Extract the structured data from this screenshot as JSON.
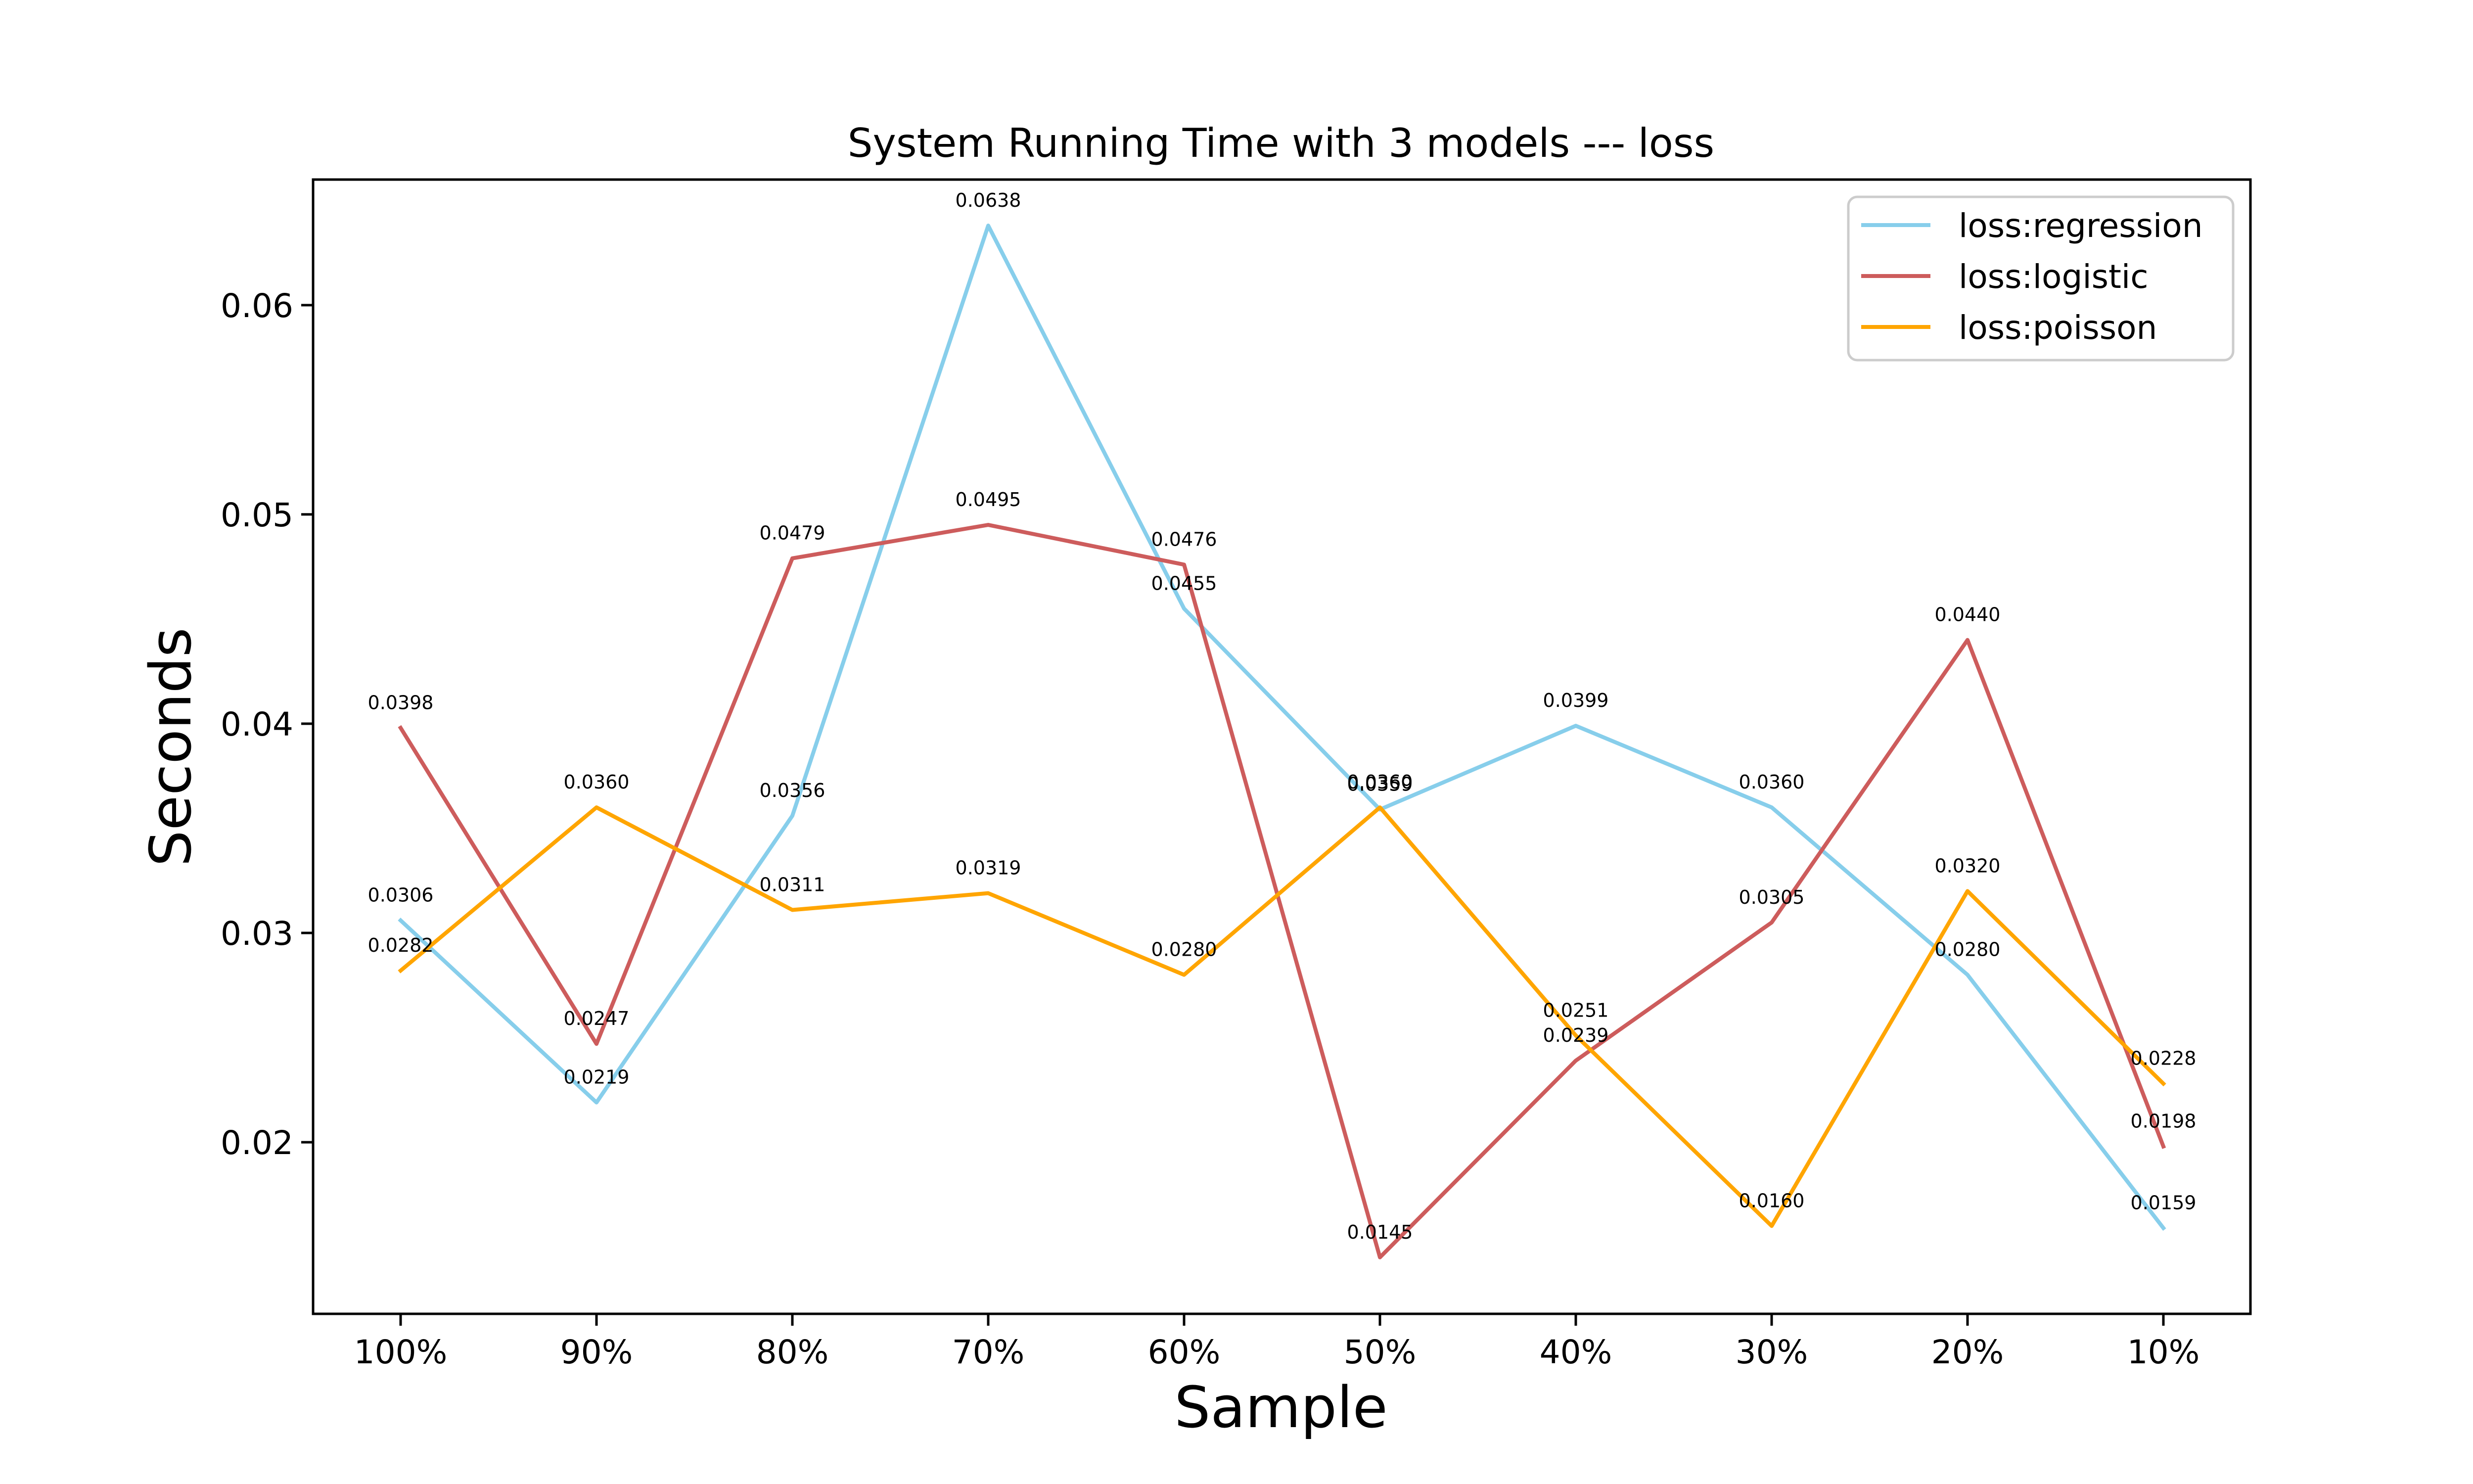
{
  "chart_data": {
    "type": "line",
    "title": "System Running Time with 3 models --- loss",
    "xlabel": "Sample",
    "ylabel": "Seconds",
    "categories": [
      "100%",
      "90%",
      "80%",
      "70%",
      "60%",
      "50%",
      "40%",
      "30%",
      "20%",
      "10%"
    ],
    "ylim": [
      0.0118,
      0.066
    ],
    "yticks": [
      0.02,
      0.03,
      0.04,
      0.05,
      0.06
    ],
    "ytick_labels": [
      "0.02",
      "0.03",
      "0.04",
      "0.05",
      "0.06"
    ],
    "grid": false,
    "legend_position": "top-right",
    "series": [
      {
        "name": "loss:regression",
        "color": "#87ceeb",
        "values": [
          0.0306,
          0.0219,
          0.0356,
          0.0638,
          0.0455,
          0.0359,
          0.0399,
          0.036,
          0.028,
          0.0159
        ],
        "labels": [
          "0.0306",
          "0.0219",
          "0.0356",
          "0.0638",
          "0.0455",
          "0.0359",
          "0.0399",
          "0.0360",
          "0.0280",
          "0.0159"
        ]
      },
      {
        "name": "loss:logistic",
        "color": "#cd5c5c",
        "values": [
          0.0398,
          0.0247,
          0.0479,
          0.0495,
          0.0476,
          0.0145,
          0.0239,
          0.0305,
          0.044,
          0.0198
        ],
        "labels": [
          "0.0398",
          "0.0247",
          "0.0479",
          "0.0495",
          "0.0476",
          "0.0145",
          "0.0239",
          "0.0305",
          "0.0440",
          "0.0198"
        ]
      },
      {
        "name": "loss:poisson",
        "color": "#ffa500",
        "values": [
          0.0282,
          0.036,
          0.0311,
          0.0319,
          0.028,
          0.036,
          0.0251,
          0.016,
          0.032,
          0.0228
        ],
        "labels": [
          "0.0282",
          "0.0360",
          "0.0311",
          "0.0319",
          "0.0280",
          "0.0360",
          "0.0251",
          "0.0160",
          "0.0320",
          "0.0228"
        ]
      }
    ]
  }
}
